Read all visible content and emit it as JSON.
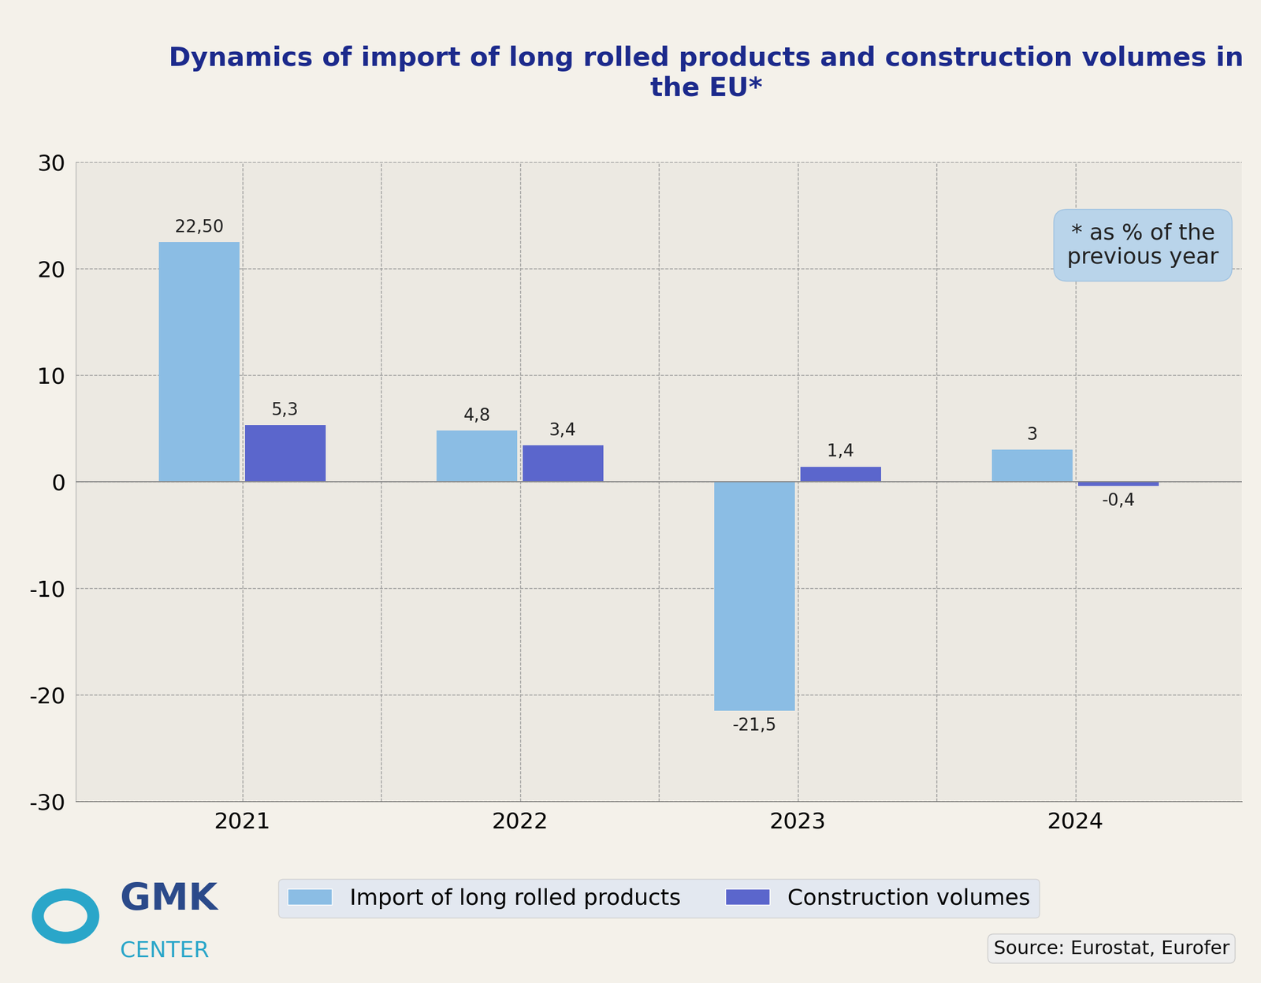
{
  "chart_data": {
    "type": "bar",
    "title": "Dynamics of import of long rolled products and construction volumes in the EU*",
    "categories": [
      "2021",
      "2022",
      "2023",
      "2024"
    ],
    "series": [
      {
        "name": "Import of long rolled products",
        "color": "#8bbde4",
        "values": [
          22.5,
          4.8,
          -21.5,
          3
        ],
        "value_labels": [
          "22,50",
          "4,8",
          "-21,5",
          "3"
        ]
      },
      {
        "name": "Construction volumes",
        "color": "#5b66cc",
        "values": [
          5.3,
          3.4,
          1.4,
          -0.4
        ],
        "value_labels": [
          "5,3",
          "3,4",
          "1,4",
          "-0,4"
        ]
      }
    ],
    "ylim": [
      -30,
      30
    ],
    "yticks": [
      -30,
      -20,
      -10,
      0,
      10,
      20,
      30
    ],
    "grid": true,
    "data_labels": true,
    "legend": "lower center",
    "annotations": [
      "* as % of the previous year",
      "Source: Eurostat, Eurofer",
      "GMK",
      "CENTER"
    ]
  }
}
